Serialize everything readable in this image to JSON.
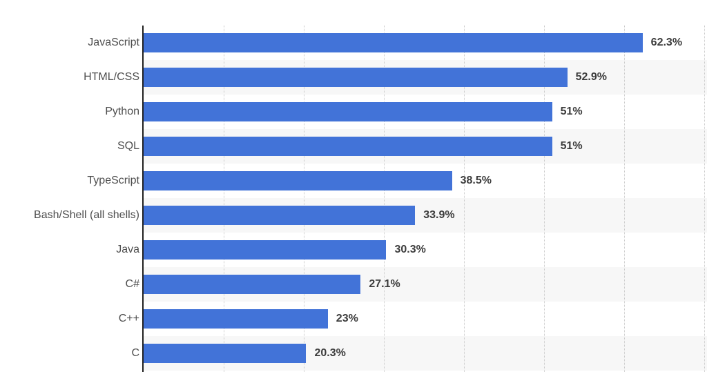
{
  "chart_data": {
    "type": "bar",
    "orientation": "horizontal",
    "categories": [
      "JavaScript",
      "HTML/CSS",
      "Python",
      "SQL",
      "TypeScript",
      "Bash/Shell (all shells)",
      "Java",
      "C#",
      "C++",
      "C"
    ],
    "values": [
      62.3,
      52.9,
      51,
      51,
      38.5,
      33.9,
      30.3,
      27.1,
      23,
      20.3
    ],
    "value_labels": [
      "62.3%",
      "52.9%",
      "51%",
      "51%",
      "38.5%",
      "33.9%",
      "30.3%",
      "27.1%",
      "23%",
      "20.3%"
    ],
    "xlim": [
      0,
      70
    ],
    "gridline_step": 10,
    "grid": "vertical-dotted",
    "legend": "none",
    "colors": {
      "bar": "#4273d8",
      "row_stripe": "#f7f7f7",
      "gridline": "#c9c9c9",
      "axis_line": "#202020",
      "category_label": "#4e4e4e",
      "value_label": "#3c3c3c",
      "background": "#ffffff"
    }
  }
}
